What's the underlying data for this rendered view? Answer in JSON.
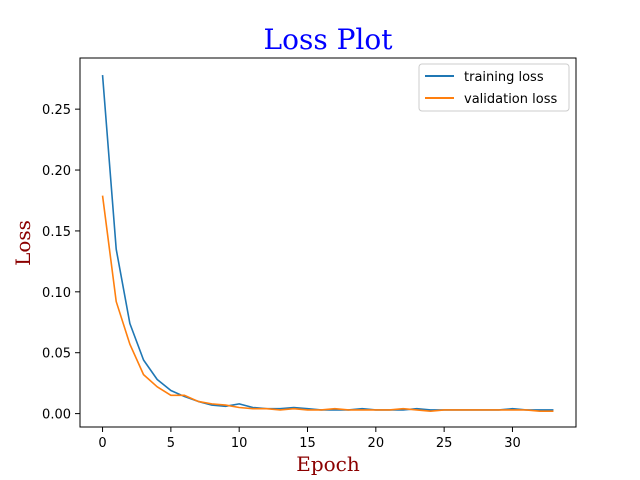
{
  "chart_data": {
    "type": "line",
    "title": "Loss Plot",
    "xlabel": "Epoch",
    "ylabel": "Loss",
    "xlim": [
      -1.65,
      34.65
    ],
    "ylim": [
      -0.011,
      0.292
    ],
    "xticks": [
      0,
      5,
      10,
      15,
      20,
      25,
      30
    ],
    "yticks": [
      0.0,
      0.05,
      0.1,
      0.15,
      0.2,
      0.25
    ],
    "ytick_labels": [
      "0.00",
      "0.05",
      "0.10",
      "0.15",
      "0.20",
      "0.25"
    ],
    "grid": false,
    "legend_position": "top-right",
    "x": [
      0,
      1,
      2,
      3,
      4,
      5,
      6,
      7,
      8,
      9,
      10,
      11,
      12,
      13,
      14,
      15,
      16,
      17,
      18,
      19,
      20,
      21,
      22,
      23,
      24,
      25,
      26,
      27,
      28,
      29,
      30,
      31,
      32,
      33
    ],
    "series": [
      {
        "name": "training loss",
        "color": "#1f77b4",
        "values": [
          0.278,
          0.135,
          0.074,
          0.044,
          0.028,
          0.019,
          0.014,
          0.01,
          0.007,
          0.006,
          0.008,
          0.005,
          0.004,
          0.004,
          0.005,
          0.004,
          0.003,
          0.003,
          0.003,
          0.004,
          0.003,
          0.003,
          0.003,
          0.004,
          0.003,
          0.003,
          0.003,
          0.003,
          0.003,
          0.003,
          0.004,
          0.003,
          0.003,
          0.003
        ]
      },
      {
        "name": "validation loss",
        "color": "#ff7f0e",
        "values": [
          0.179,
          0.092,
          0.057,
          0.032,
          0.022,
          0.015,
          0.015,
          0.01,
          0.008,
          0.007,
          0.005,
          0.004,
          0.004,
          0.003,
          0.004,
          0.003,
          0.003,
          0.004,
          0.003,
          0.003,
          0.003,
          0.003,
          0.004,
          0.003,
          0.002,
          0.003,
          0.003,
          0.003,
          0.003,
          0.003,
          0.003,
          0.003,
          0.002,
          0.002
        ]
      }
    ]
  }
}
